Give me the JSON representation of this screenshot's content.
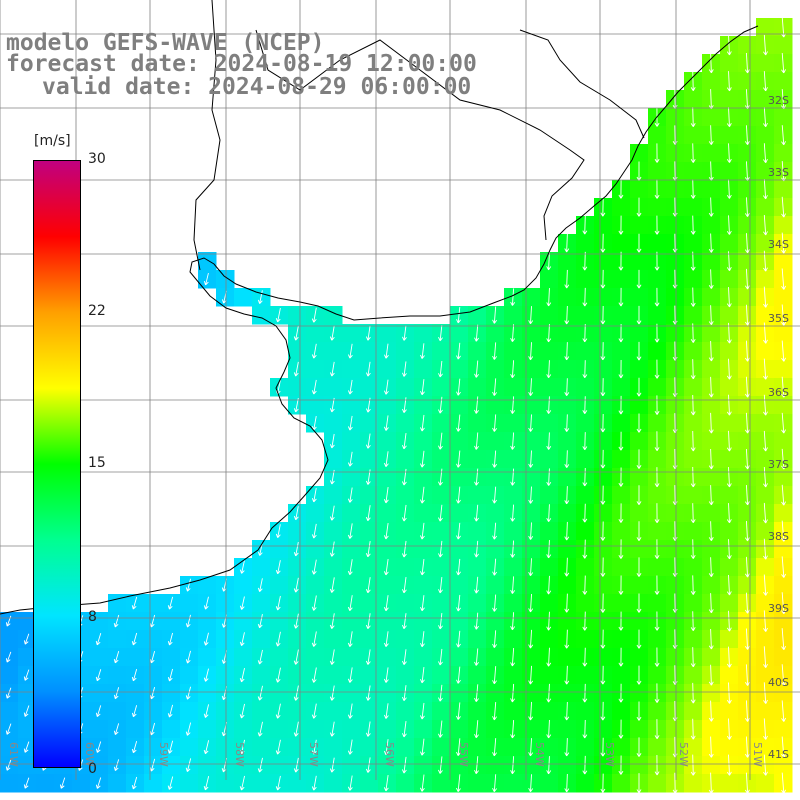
{
  "header": {
    "model": "modelo GEFS-WAVE (NCEP)",
    "forecast": "forecast date: 2024-08-19 12:00:00",
    "valid": "valid date: 2024-08-29 06:00:00"
  },
  "colorbar": {
    "unit": "[m/s]",
    "ticks": [
      "30",
      "22",
      "15",
      "8",
      "0"
    ],
    "min": 0,
    "max": 30,
    "colors": [
      "#0000ff",
      "#0090ff",
      "#00e5ff",
      "#00ff90",
      "#00ff00",
      "#ffff00",
      "#ffa000",
      "#ff0000",
      "#c00080"
    ]
  },
  "map": {
    "lat_labels": [
      "32S",
      "33S",
      "34S",
      "35S",
      "36S",
      "37S",
      "38S",
      "39S",
      "40S",
      "41S"
    ],
    "lon_labels": [
      "61W",
      "60W",
      "59W",
      "58W",
      "57W",
      "56W",
      "55W",
      "54W",
      "53W",
      "52W",
      "51W"
    ],
    "land_color": "#ffffff",
    "grid_color": "#808080",
    "coast_color": "#000000",
    "arrow_color": "#ffffff"
  }
}
